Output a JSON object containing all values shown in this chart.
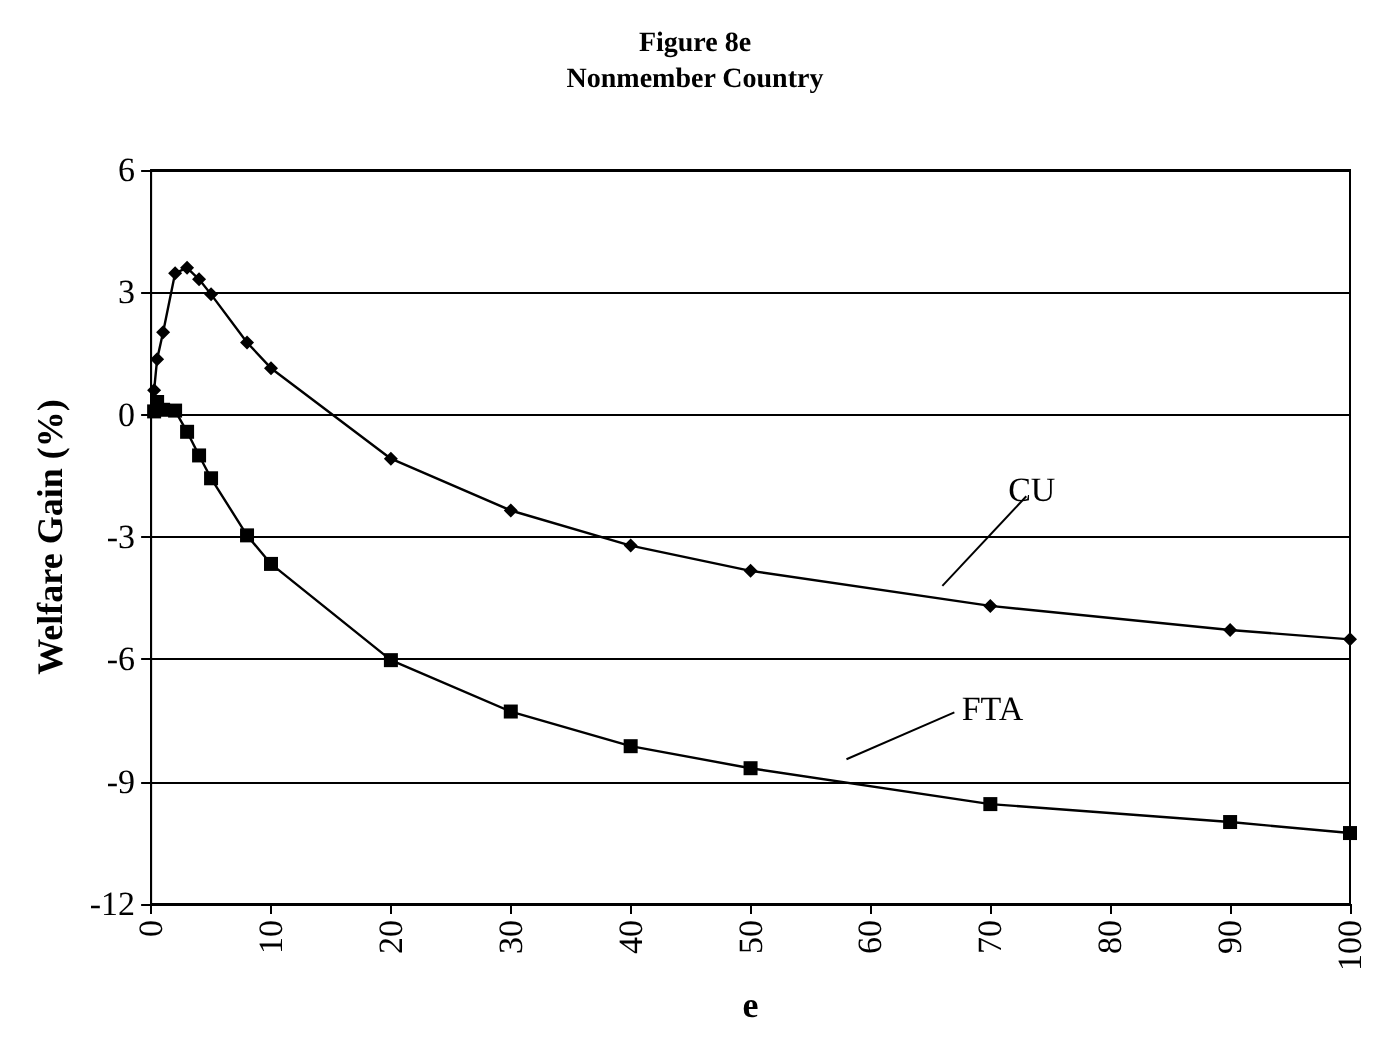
{
  "chart_data": {
    "type": "line",
    "title": "Figure 8e",
    "subtitle": "Nonmember Country",
    "xlabel": "e",
    "ylabel": "Welfare Gain (%)",
    "xlim": [
      0,
      100
    ],
    "xticks": [
      0,
      10,
      20,
      30,
      40,
      50,
      60,
      70,
      80,
      90,
      100
    ],
    "ylim": [
      -12,
      6
    ],
    "yticks": [
      -12,
      -9,
      -6,
      -3,
      0,
      3,
      6
    ],
    "grid": "y",
    "legend": false,
    "series": [
      {
        "name": "CU",
        "color": "#000000",
        "marker": "diamond",
        "x": [
          0.25,
          0.5,
          1,
          2,
          3,
          4,
          5,
          8,
          10,
          20,
          30,
          40,
          50,
          70,
          90,
          100
        ],
        "values": [
          0.6,
          1.36,
          2.02,
          3.47,
          3.6,
          3.32,
          2.95,
          1.77,
          1.14,
          -1.08,
          -2.35,
          -3.21,
          -3.83,
          -4.69,
          -5.28,
          -5.51
        ]
      },
      {
        "name": "FTA",
        "color": "#000000",
        "marker": "square",
        "x": [
          0.25,
          0.5,
          1,
          2,
          3,
          4,
          5,
          8,
          10,
          20,
          30,
          40,
          50,
          70,
          90,
          100
        ],
        "values": [
          0.08,
          0.31,
          0.12,
          0.1,
          -0.42,
          -1.0,
          -1.56,
          -2.96,
          -3.66,
          -6.02,
          -7.28,
          -8.13,
          -8.67,
          -9.55,
          -9.99,
          -10.26
        ]
      }
    ]
  }
}
